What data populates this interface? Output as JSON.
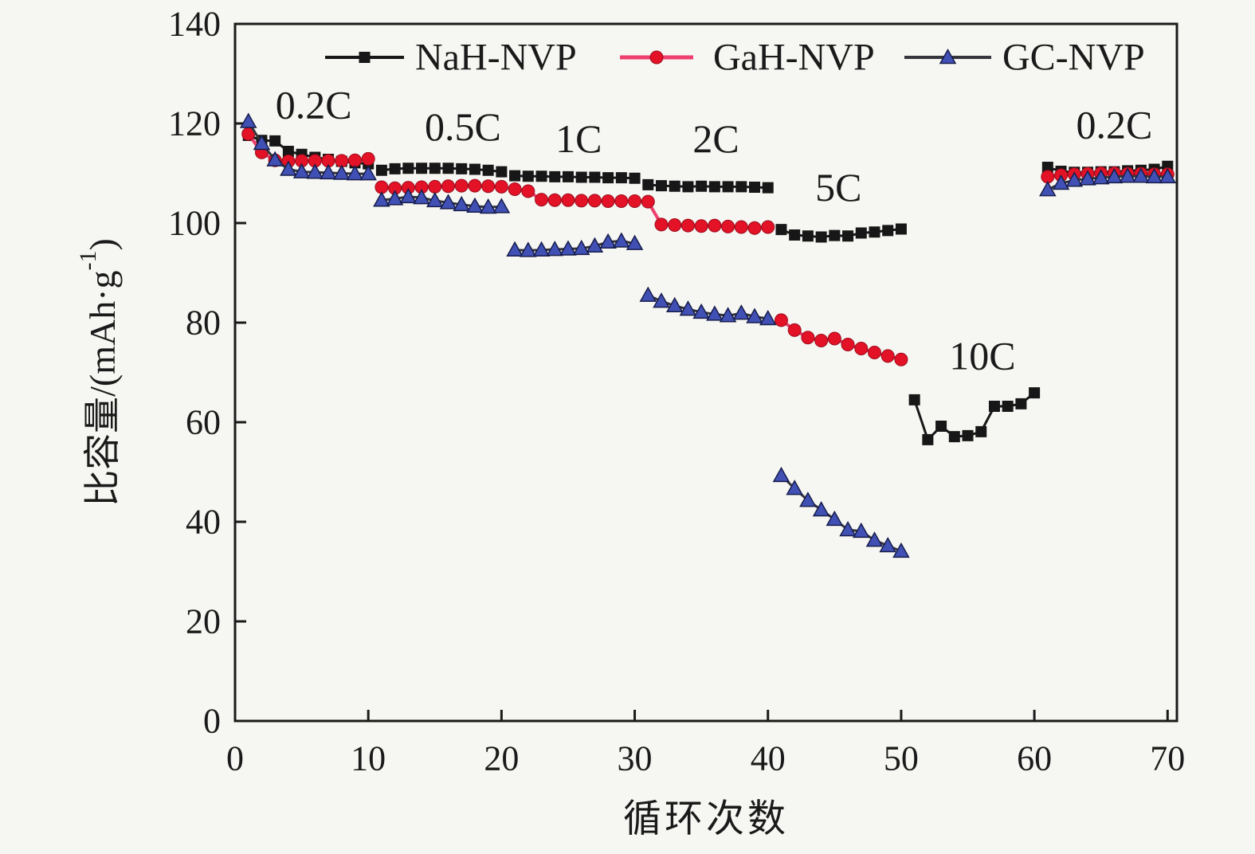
{
  "page": {
    "background_color": "#f6f6f3",
    "text_color": "#1a1a1a"
  },
  "chart_data": {
    "type": "line",
    "title": "",
    "xlabel": "循环次数",
    "ylabel": "比容量/(mAh·g⁻¹)",
    "ylabel_parts": {
      "main": "比容量/(mAh·g",
      "sup": "-1",
      "close": ")"
    },
    "xlim": [
      0,
      70.7
    ],
    "ylim": [
      0,
      140
    ],
    "xticks": [
      0,
      10,
      20,
      30,
      40,
      50,
      60,
      70
    ],
    "yticks": [
      0,
      20,
      40,
      60,
      80,
      100,
      120,
      140
    ],
    "grid": false,
    "legend_position": "top-inside",
    "axis_color": "#1a1a1a",
    "rate_labels": [
      {
        "label": "0.2C",
        "cycle": 5.9,
        "capacity": 123.8
      },
      {
        "label": "0.5C",
        "cycle": 17.1,
        "capacity": 119.4
      },
      {
        "label": "1C",
        "cycle": 25.8,
        "capacity": 117.0
      },
      {
        "label": "2C",
        "cycle": 36.1,
        "capacity": 117.0
      },
      {
        "label": "5C",
        "cycle": 45.3,
        "capacity": 107.2
      },
      {
        "label": "10C",
        "cycle": 56.1,
        "capacity": 73.4
      },
      {
        "label": "0.2C",
        "cycle": 66.0,
        "capacity": 119.8
      }
    ],
    "series": [
      {
        "name": "NaH-NVP",
        "marker": "square",
        "marker_color": "#171717",
        "line_color": "#171717",
        "segments": [
          {
            "x_start": 1,
            "values": [
              117.6,
              116.6,
              116.5,
              114.4,
              113.8,
              113.2,
              112.8,
              112.4,
              112.1,
              111.9
            ]
          },
          {
            "x_start": 11,
            "values": [
              110.6,
              110.9,
              111.0,
              111.0,
              111.0,
              111.0,
              110.9,
              110.8,
              110.6,
              110.3
            ]
          },
          {
            "x_start": 21,
            "values": [
              109.5,
              109.4,
              109.4,
              109.3,
              109.3,
              109.2,
              109.2,
              109.1,
              109.1,
              109.0
            ]
          },
          {
            "x_start": 31,
            "values": [
              107.7,
              107.5,
              107.4,
              107.3,
              107.4,
              107.3,
              107.3,
              107.3,
              107.2,
              107.1
            ]
          },
          {
            "x_start": 41,
            "values": [
              98.7,
              97.6,
              97.4,
              97.2,
              97.5,
              97.4,
              98.0,
              98.2,
              98.5,
              98.8
            ]
          },
          {
            "x_start": 51,
            "values": [
              64.5,
              56.5,
              59.2,
              57.1,
              57.3,
              58.1,
              63.2,
              63.2,
              63.7,
              65.9
            ]
          },
          {
            "x_start": 61,
            "values": [
              111.2,
              110.4,
              110.2,
              110.2,
              110.3,
              110.3,
              110.5,
              110.6,
              110.8,
              111.4
            ]
          }
        ]
      },
      {
        "name": "GaH-NVP",
        "marker": "circle",
        "marker_color": "#e31227",
        "line_color": "#ee3f6f",
        "segments": [
          {
            "x_start": 1,
            "values": [
              117.9,
              114.2,
              112.6,
              112.4,
              112.5,
              112.5,
              112.5,
              112.5,
              112.6,
              112.9
            ]
          },
          {
            "x_start": 11,
            "values": [
              107.2,
              107.0,
              107.1,
              107.2,
              107.3,
              107.4,
              107.5,
              107.5,
              107.4,
              107.3
            ]
          },
          {
            "x_start": 21,
            "values": [
              106.8,
              106.4,
              104.7,
              104.6,
              104.6,
              104.5,
              104.5,
              104.4,
              104.4,
              104.4
            ]
          },
          {
            "x_start": 31,
            "values": [
              104.3,
              99.7,
              99.6,
              99.5,
              99.4,
              99.5,
              99.3,
              99.2,
              99.0,
              99.2
            ]
          },
          {
            "x_start": 41,
            "values": [
              80.5,
              78.5,
              77.0,
              76.4,
              76.8,
              75.6,
              74.8,
              74.0,
              73.3,
              72.6
            ]
          },
          {
            "x_start": 61,
            "values": [
              109.3,
              109.6,
              109.8,
              109.9,
              110.0,
              110.0,
              109.9,
              109.9,
              109.8,
              109.8
            ]
          }
        ]
      },
      {
        "name": "GC-NVP",
        "marker": "triangle",
        "marker_color": "#4150b5",
        "line_color": "#35353c",
        "segments": [
          {
            "x_start": 1,
            "values": [
              120.4,
              116.0,
              112.7,
              110.8,
              110.3,
              110.2,
              110.1,
              110.0,
              109.9,
              109.9
            ]
          },
          {
            "x_start": 11,
            "values": [
              104.6,
              104.9,
              105.3,
              105.1,
              104.5,
              104.1,
              103.7,
              103.4,
              103.2,
              103.3
            ]
          },
          {
            "x_start": 21,
            "values": [
              94.6,
              94.5,
              94.6,
              94.7,
              94.8,
              94.9,
              95.4,
              96.2,
              96.4,
              95.9
            ]
          },
          {
            "x_start": 31,
            "values": [
              85.5,
              84.3,
              83.4,
              82.7,
              82.1,
              81.7,
              81.4,
              81.9,
              81.2,
              80.8
            ]
          },
          {
            "x_start": 41,
            "values": [
              49.3,
              46.7,
              44.3,
              42.4,
              40.5,
              38.4,
              38.1,
              36.3,
              35.2,
              34.1
            ]
          },
          {
            "x_start": 61,
            "values": [
              106.7,
              108.0,
              108.6,
              108.9,
              109.1,
              109.3,
              109.4,
              109.4,
              109.3,
              109.3
            ]
          }
        ]
      }
    ]
  }
}
